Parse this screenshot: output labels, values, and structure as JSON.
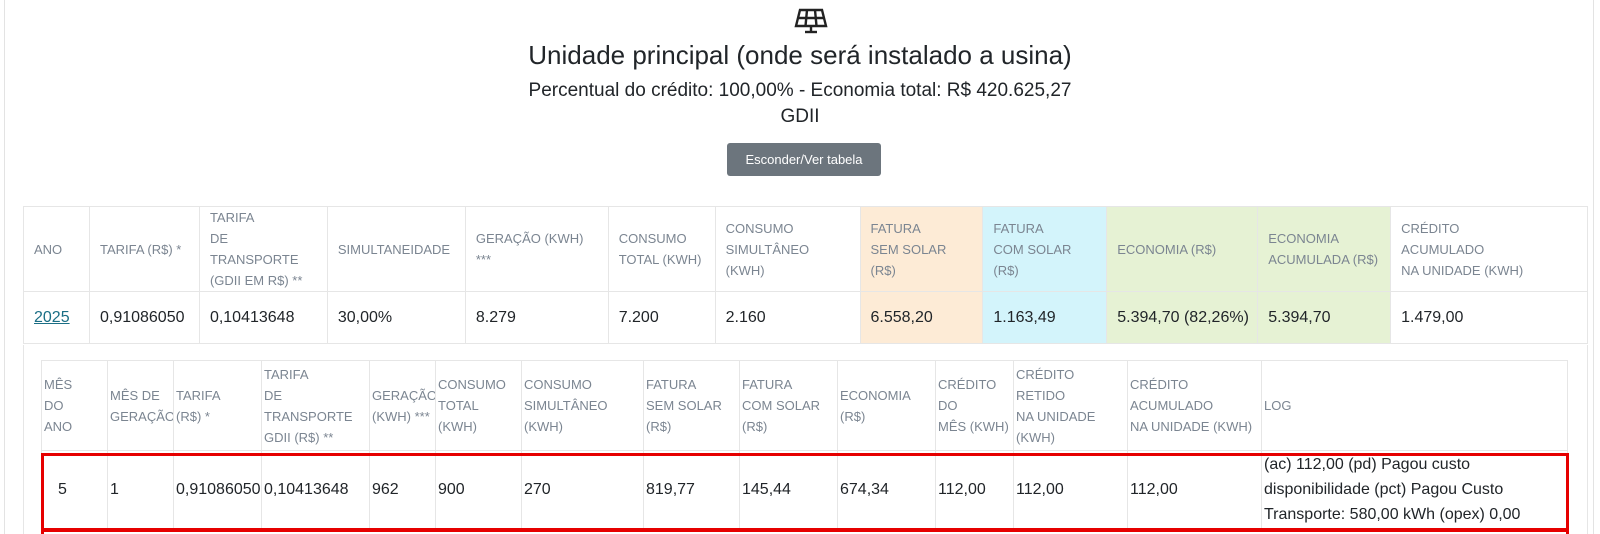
{
  "header": {
    "icon": "solar-panel-icon",
    "title": "Unidade principal (onde será instalado a usina)",
    "subtitle": "Percentual do crédito: 100,00% - Economia total: R$ 420.625,27",
    "mode": "GDII",
    "toggle_button": "Esconder/Ver tabela"
  },
  "colors": {
    "fatura_sem_solar": "#fdebd6",
    "fatura_com_solar": "#d3f4fb",
    "economia": "#e6f2d4",
    "highlight": "#e60000",
    "button": "#6c757d"
  },
  "year_table": {
    "headers": [
      [
        "ANO"
      ],
      [
        "TARIFA (R$) *"
      ],
      [
        "TARIFA",
        "DE TRANSPORTE",
        "(GDII EM R$) **"
      ],
      [
        "SIMULTANEIDADE"
      ],
      [
        "GERAÇÃO (KWH)",
        "***"
      ],
      [
        "CONSUMO",
        "TOTAL (KWH)"
      ],
      [
        "CONSUMO",
        "SIMULTÂNEO",
        "(KWH)"
      ],
      [
        "FATURA",
        "SEM SOLAR",
        "(R$)"
      ],
      [
        "FATURA",
        "COM SOLAR",
        "(R$)"
      ],
      [
        "ECONOMIA (R$)"
      ],
      [
        "ECONOMIA",
        "ACUMULADA (R$)"
      ],
      [
        "CRÉDITO",
        "ACUMULADO",
        "NA UNIDADE (KWH)"
      ]
    ],
    "row": [
      "2025",
      "0,91086050",
      "0,10413648",
      "30,00%",
      "8.279",
      "7.200",
      "2.160",
      "6.558,20",
      "1.163,49",
      "5.394,70 (82,26%)",
      "5.394,70",
      "1.479,00"
    ]
  },
  "month_table": {
    "headers": [
      [
        "MÊS",
        "DO",
        "ANO"
      ],
      [
        "MÊS DE",
        "GERAÇÃO"
      ],
      [
        "TARIFA",
        "(R$) *"
      ],
      [
        "TARIFA",
        "DE",
        "TRANSPORTE",
        "GDII (R$) **"
      ],
      [
        "GERAÇÃO",
        "(KWH) ***"
      ],
      [
        "CONSUMO",
        "TOTAL",
        "(KWH)"
      ],
      [
        "CONSUMO",
        "SIMULTÂNEO",
        "(KWH)"
      ],
      [
        "FATURA",
        "SEM SOLAR",
        "(R$)"
      ],
      [
        "FATURA",
        "COM SOLAR",
        "(R$)"
      ],
      [
        "ECONOMIA",
        "(R$)"
      ],
      [
        "CRÉDITO",
        "DO",
        "MÊS (KWH)"
      ],
      [
        "CRÉDITO RETIDO",
        "NA UNIDADE",
        "(KWH)"
      ],
      [
        "CRÉDITO",
        "ACUMULADO",
        "NA UNIDADE (KWH)"
      ],
      [
        "LOG"
      ]
    ],
    "row": [
      "5",
      "1",
      "0,91086050",
      "0,10413648",
      "962",
      "900",
      "270",
      "819,77",
      "145,44",
      "674,34",
      "112,00",
      "112,00",
      "112,00",
      "(ac) 112,00 (pd) Pagou custo disponibilidade (pct) Pagou Custo Transporte: 580,00 kWh (opex) 0,00"
    ]
  }
}
